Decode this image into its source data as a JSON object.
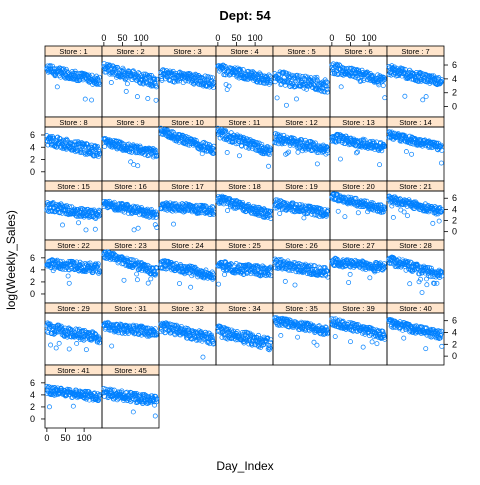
{
  "chart_data": {
    "type": "scatter",
    "layout": "lattice-trellis",
    "title": "Dept: 54",
    "xlabel": "Day_Index",
    "ylabel": "log(Weekly_Sales)",
    "xlim": [
      -5,
      148
    ],
    "ylim": [
      -1.5,
      7.3
    ],
    "x_ticks": [
      0,
      50,
      100
    ],
    "y_ticks": [
      0,
      2,
      4,
      6
    ],
    "strip_prefix": "Store : ",
    "colors": {
      "point": "#0080ff",
      "strip_bg": "#ffe5cc",
      "frame": "#000000"
    },
    "marker": "open-circle",
    "n_days": 143,
    "panels": [
      {
        "store": "1",
        "pattern": [
          5.4,
          3.6,
          0.7
        ]
      },
      {
        "store": "2",
        "pattern": [
          5.5,
          3.5,
          0.8
        ]
      },
      {
        "store": "3",
        "pattern": [
          4.6,
          3.5,
          0.8
        ]
      },
      {
        "store": "4",
        "pattern": [
          5.5,
          3.8,
          0.7
        ]
      },
      {
        "store": "5",
        "pattern": [
          4.2,
          3.0,
          1.0
        ]
      },
      {
        "store": "6",
        "pattern": [
          5.5,
          3.7,
          0.8
        ]
      },
      {
        "store": "7",
        "pattern": [
          5.3,
          3.5,
          0.7
        ]
      },
      {
        "store": "8",
        "pattern": [
          5.2,
          3.2,
          0.9
        ]
      },
      {
        "store": "9",
        "pattern": [
          4.8,
          3.0,
          0.7
        ]
      },
      {
        "store": "10",
        "pattern": [
          6.5,
          3.6,
          0.7
        ]
      },
      {
        "store": "11",
        "pattern": [
          6.4,
          3.2,
          0.8
        ]
      },
      {
        "store": "12",
        "pattern": [
          5.5,
          3.5,
          0.8
        ]
      },
      {
        "store": "13",
        "pattern": [
          5.6,
          4.0,
          0.7
        ]
      },
      {
        "store": "14",
        "pattern": [
          6.0,
          4.0,
          0.6
        ]
      },
      {
        "store": "15",
        "pattern": [
          4.5,
          3.0,
          0.9
        ]
      },
      {
        "store": "16",
        "pattern": [
          5.0,
          3.0,
          0.8
        ]
      },
      {
        "store": "17",
        "pattern": [
          4.6,
          3.8,
          0.8
        ]
      },
      {
        "store": "18",
        "pattern": [
          5.8,
          3.0,
          0.8
        ]
      },
      {
        "store": "19",
        "pattern": [
          5.0,
          3.2,
          0.8
        ]
      },
      {
        "store": "20",
        "pattern": [
          6.4,
          4.0,
          0.7
        ]
      },
      {
        "store": "21",
        "pattern": [
          5.9,
          3.6,
          0.7
        ]
      },
      {
        "store": "22",
        "pattern": [
          5.0,
          4.2,
          0.8
        ]
      },
      {
        "store": "23",
        "pattern": [
          6.6,
          3.7,
          0.7
        ]
      },
      {
        "store": "24",
        "pattern": [
          5.0,
          3.0,
          0.8
        ]
      },
      {
        "store": "25",
        "pattern": [
          4.6,
          3.6,
          0.9
        ]
      },
      {
        "store": "26",
        "pattern": [
          5.1,
          3.5,
          0.8
        ]
      },
      {
        "store": "27",
        "pattern": [
          5.3,
          4.4,
          0.7
        ]
      },
      {
        "store": "28",
        "pattern": [
          5.5,
          3.1,
          0.8
        ]
      },
      {
        "store": "29",
        "pattern": [
          4.8,
          3.0,
          0.9
        ]
      },
      {
        "store": "31",
        "pattern": [
          5.0,
          4.0,
          0.8
        ]
      },
      {
        "store": "32",
        "pattern": [
          5.0,
          2.8,
          0.9
        ]
      },
      {
        "store": "34",
        "pattern": [
          4.3,
          2.0,
          1.0
        ]
      },
      {
        "store": "35",
        "pattern": [
          6.0,
          4.2,
          0.7
        ]
      },
      {
        "store": "39",
        "pattern": [
          5.8,
          3.5,
          0.7
        ]
      },
      {
        "store": "40",
        "pattern": [
          5.6,
          3.5,
          0.7
        ]
      },
      {
        "store": "41",
        "pattern": [
          4.8,
          3.6,
          0.7
        ]
      },
      {
        "store": "45",
        "pattern": [
          4.3,
          3.0,
          0.8
        ]
      }
    ]
  }
}
